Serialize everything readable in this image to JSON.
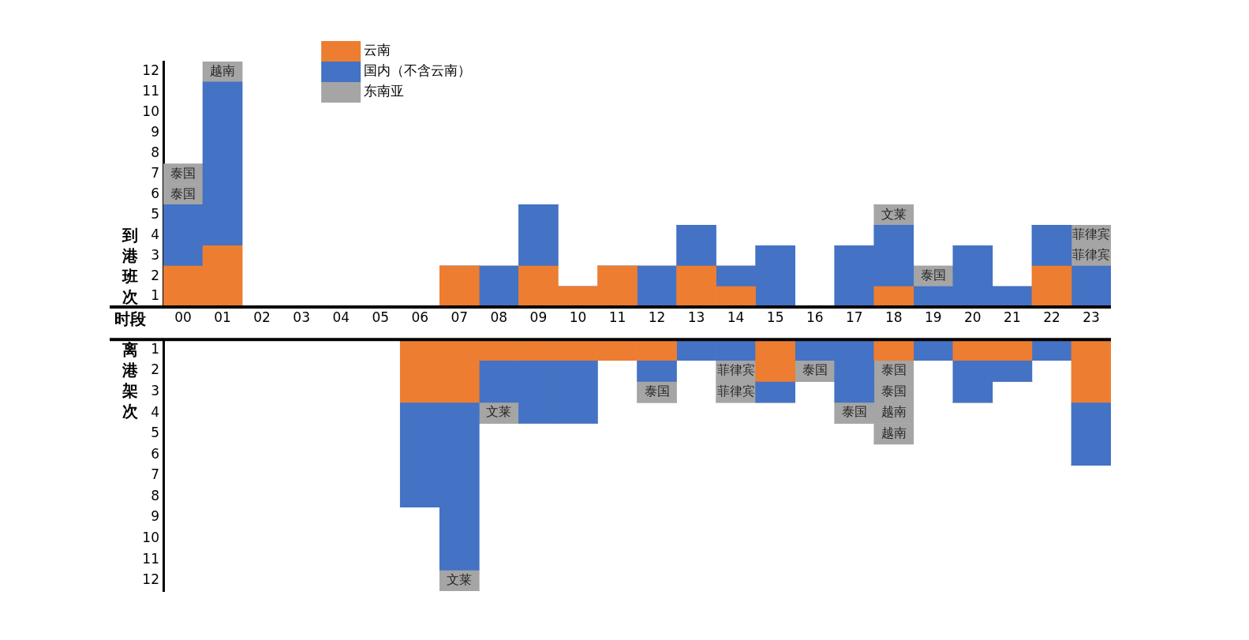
{
  "chart_data": [
    {
      "type": "bar",
      "xlabel": "时段",
      "ylabel": "到港班次",
      "categories": [
        "00",
        "01",
        "02",
        "03",
        "04",
        "05",
        "06",
        "07",
        "08",
        "09",
        "10",
        "11",
        "12",
        "13",
        "14",
        "15",
        "16",
        "17",
        "18",
        "19",
        "20",
        "21",
        "22",
        "23"
      ],
      "stacked": true,
      "ylim": [
        0,
        12
      ],
      "yticks": [
        {
          "value": 0.5,
          "label": "1"
        },
        {
          "value": 1.5,
          "label": "2"
        },
        {
          "value": 2.5,
          "label": "3"
        },
        {
          "value": 3.5,
          "label": "4"
        },
        {
          "value": 4.5,
          "label": "5"
        },
        {
          "value": 5.5,
          "label": "6"
        },
        {
          "value": 6.5,
          "label": "7"
        },
        {
          "value": 7.5,
          "label": "8"
        },
        {
          "value": 8.5,
          "label": "9"
        },
        {
          "value": 9.5,
          "label": "10"
        },
        {
          "value": 10.5,
          "label": "11"
        },
        {
          "value": 11.5,
          "label": "12"
        }
      ],
      "legend": "top left",
      "series": [
        {
          "name": "云南",
          "color": "#ed7d31",
          "values": [
            2,
            3,
            0,
            0,
            0,
            0,
            0,
            2,
            0,
            2,
            1,
            2,
            0,
            2,
            1,
            0,
            0,
            0,
            1,
            0,
            0,
            0,
            2,
            0
          ]
        },
        {
          "name": "国内（不含云南）",
          "color": "#4472c4",
          "values": [
            3,
            8,
            0,
            0,
            0,
            0,
            0,
            0,
            2,
            3,
            0,
            0,
            2,
            2,
            1,
            3,
            0,
            3,
            3,
            1,
            3,
            1,
            2,
            2
          ]
        },
        {
          "name": "东南亚",
          "color": "#a5a5a5",
          "values": [
            1,
            1,
            0,
            0,
            0,
            0,
            0,
            0,
            0,
            0,
            0,
            0,
            0,
            0,
            0,
            0,
            0,
            0,
            1,
            1,
            0,
            0,
            0,
            1
          ],
          "value_labels": [
            "泰国",
            "越南",
            null,
            null,
            null,
            null,
            null,
            null,
            null,
            null,
            null,
            null,
            null,
            null,
            null,
            null,
            null,
            null,
            "文莱",
            "泰国",
            null,
            null,
            null,
            "菲律宾"
          ]
        },
        {
          "color": "#a5a5a5",
          "values": [
            1,
            0,
            0,
            0,
            0,
            0,
            0,
            0,
            0,
            0,
            0,
            0,
            0,
            0,
            0,
            0,
            0,
            0,
            0,
            0,
            0,
            0,
            0,
            1
          ],
          "value_labels": [
            "泰国",
            null,
            null,
            null,
            null,
            null,
            null,
            null,
            null,
            null,
            null,
            null,
            null,
            null,
            null,
            null,
            null,
            null,
            null,
            null,
            null,
            null,
            null,
            "菲律宾"
          ]
        }
      ]
    },
    {
      "type": "bar",
      "ylabel": "离港架次",
      "categories": [
        "00",
        "01",
        "02",
        "03",
        "04",
        "05",
        "06",
        "07",
        "08",
        "09",
        "10",
        "11",
        "12",
        "13",
        "14",
        "15",
        "16",
        "17",
        "18",
        "19",
        "20",
        "21",
        "22",
        "23"
      ],
      "stacked": true,
      "ylim": [
        12,
        0
      ],
      "yticks": [
        {
          "value": 0.5,
          "label": "1"
        },
        {
          "value": 1.5,
          "label": "2"
        },
        {
          "value": 2.5,
          "label": "3"
        },
        {
          "value": 3.5,
          "label": "4"
        },
        {
          "value": 4.5,
          "label": "5"
        },
        {
          "value": 5.5,
          "label": "6"
        },
        {
          "value": 6.5,
          "label": "7"
        },
        {
          "value": 7.5,
          "label": "8"
        },
        {
          "value": 8.5,
          "label": "9"
        },
        {
          "value": 9.5,
          "label": "10"
        },
        {
          "value": 10.5,
          "label": "11"
        },
        {
          "value": 11.5,
          "label": "12"
        }
      ],
      "tick_labels": "y",
      "series": [
        {
          "color": "#ed7d31",
          "values": [
            0,
            0,
            0,
            0,
            0,
            0,
            3,
            3,
            1,
            1,
            1,
            1,
            1,
            0,
            0,
            2,
            0,
            0,
            1,
            0,
            1,
            1,
            0,
            3
          ]
        },
        {
          "color": "#4472c4",
          "values": [
            0,
            0,
            0,
            0,
            0,
            0,
            5,
            8,
            2,
            3,
            3,
            0,
            1,
            1,
            1,
            1,
            1,
            3,
            0,
            1,
            2,
            1,
            1,
            3
          ]
        },
        {
          "color": "#a5a5a5",
          "values": [
            0,
            0,
            0,
            0,
            0,
            0,
            0,
            1,
            1,
            0,
            0,
            0,
            1,
            0,
            1,
            0,
            1,
            1,
            1,
            0,
            0,
            0,
            0,
            0
          ],
          "value_labels": [
            null,
            null,
            null,
            null,
            null,
            null,
            null,
            "文莱",
            "文莱",
            null,
            null,
            null,
            "泰国",
            null,
            "菲律宾",
            null,
            "泰国",
            "泰国",
            "泰国",
            null,
            null,
            null,
            null,
            null
          ]
        },
        {
          "color": "#a5a5a5",
          "values": [
            0,
            0,
            0,
            0,
            0,
            0,
            0,
            0,
            0,
            0,
            0,
            0,
            0,
            0,
            1,
            0,
            0,
            0,
            1,
            0,
            0,
            0,
            0,
            0
          ],
          "value_labels": [
            null,
            null,
            null,
            null,
            null,
            null,
            null,
            null,
            null,
            null,
            null,
            null,
            null,
            null,
            "菲律宾",
            null,
            null,
            null,
            "泰国",
            null,
            null,
            null,
            null,
            null
          ]
        },
        {
          "color": "#a5a5a5",
          "values": [
            0,
            0,
            0,
            0,
            0,
            0,
            0,
            0,
            0,
            0,
            0,
            0,
            0,
            0,
            0,
            0,
            0,
            0,
            1,
            0,
            0,
            0,
            0,
            0
          ],
          "value_labels": [
            null,
            null,
            null,
            null,
            null,
            null,
            null,
            null,
            null,
            null,
            null,
            null,
            null,
            null,
            null,
            null,
            null,
            null,
            "越南",
            null,
            null,
            null,
            null,
            null
          ]
        },
        {
          "color": "#a5a5a5",
          "values": [
            0,
            0,
            0,
            0,
            0,
            0,
            0,
            0,
            0,
            0,
            0,
            0,
            0,
            0,
            0,
            0,
            0,
            0,
            1,
            0,
            0,
            0,
            0,
            0
          ],
          "value_labels": [
            null,
            null,
            null,
            null,
            null,
            null,
            null,
            null,
            null,
            null,
            null,
            null,
            null,
            null,
            null,
            null,
            null,
            null,
            "越南",
            null,
            null,
            null,
            null,
            null
          ]
        }
      ]
    }
  ]
}
